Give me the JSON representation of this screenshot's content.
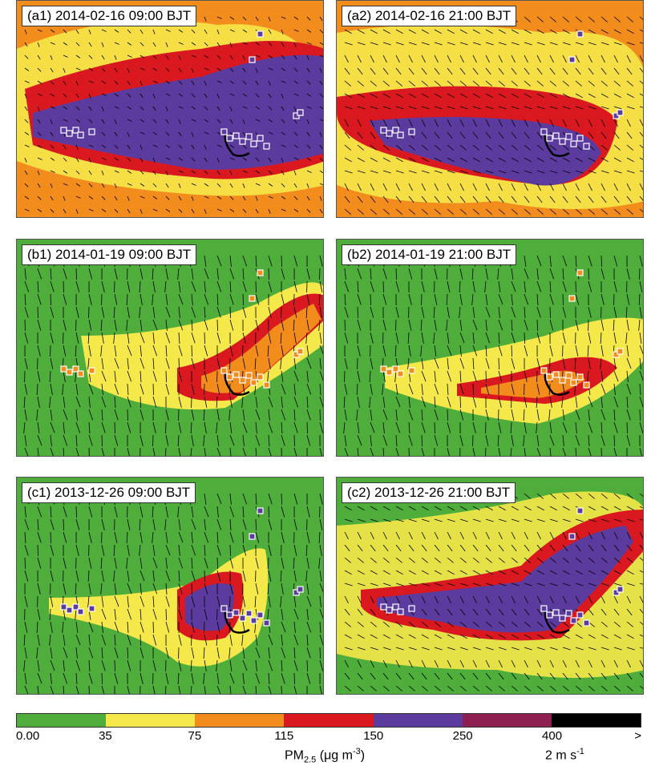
{
  "panels": [
    {
      "label": "(a1) 2014-02-16 09:00 BJT",
      "bg": "#f28c1c",
      "blob": "#5b3c9e",
      "ring": "#d9181f",
      "outer": "#f5e84a",
      "haze": "#f5e84a",
      "wind": "light"
    },
    {
      "label": "(a2) 2014-02-16 21:00 BJT",
      "bg": "#f28c1c",
      "blob": "#5b3c9e",
      "ring": "#d9181f",
      "outer": "#f5e84a",
      "haze": "#f5e84a",
      "wind": "mixed"
    },
    {
      "label": "(b1) 2014-01-19 09:00 BJT",
      "bg": "#4fae3b",
      "blob": "#f28c1c",
      "ring": "#d9181f",
      "outer": "#f5e84a",
      "haze": "#4fae3b",
      "wind": "strong"
    },
    {
      "label": "(b2) 2014-01-19 21:00 BJT",
      "bg": "#4fae3b",
      "blob": "#f28c1c",
      "ring": "#d9181f",
      "outer": "#f5e84a",
      "haze": "#4fae3b",
      "wind": "strong"
    },
    {
      "label": "(c1) 2013-12-26 09:00 BJT",
      "bg": "#4fae3b",
      "blob": "#5b3c9e",
      "ring": "#d9181f",
      "outer": "#f5e84a",
      "haze": "#4fae3b",
      "wind": "strong"
    },
    {
      "label": "(c2) 2013-12-26 21:00 BJT",
      "bg": "#4fae3b",
      "blob": "#5b3c9e",
      "ring": "#d9181f",
      "outer": "#f5e84a",
      "haze": "#f5e84a",
      "wind": "mixed"
    }
  ],
  "colorbar": {
    "colors": [
      "#4fae3b",
      "#f5e84a",
      "#f28c1c",
      "#d9181f",
      "#5b3c9e",
      "#8c1f4f",
      "#000000"
    ],
    "ticks": [
      "0.00",
      "35",
      "75",
      "115",
      "150",
      "250",
      "400",
      ">"
    ]
  },
  "legend": {
    "pm_label": "PM",
    "pm_sub": "2.5",
    "pm_units": " (μg m",
    "pm_units_sup": "-3",
    "pm_close": ")",
    "wind_label": "2 m s",
    "wind_sup": "-1"
  }
}
